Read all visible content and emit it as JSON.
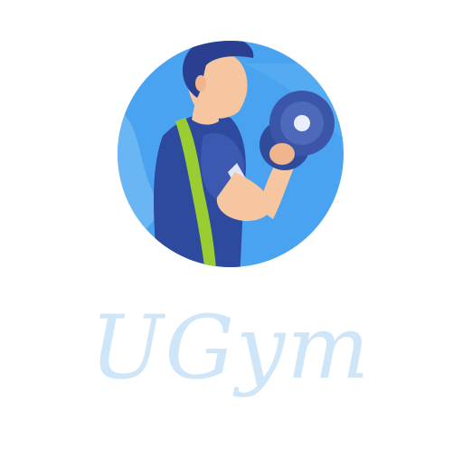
{
  "brand": {
    "name": "UGym",
    "colors": {
      "circle": "#4aa3f0",
      "circle_light": "#6ab6f4",
      "circle_dark": "#2f7fd8",
      "shirt": "#2e4a9e",
      "shirt_accent": "#9acd32",
      "skin": "#f5c6a0",
      "hair": "#2a3f8f",
      "dumbbell": "#3b56a8",
      "dumbbell_center": "#e8eefc",
      "wordmark": "#cfe6f9"
    }
  }
}
